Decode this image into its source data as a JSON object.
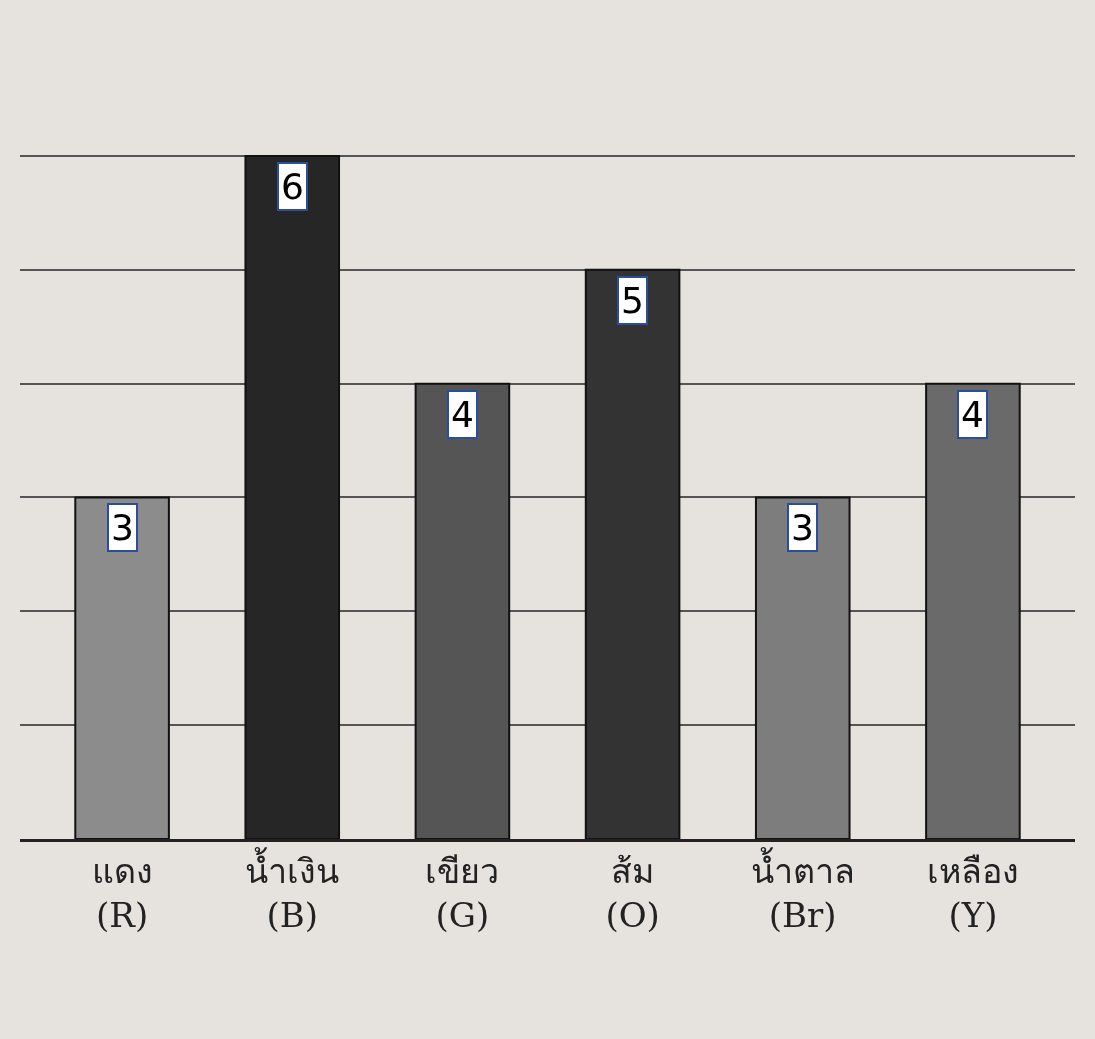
{
  "chart_data": {
    "type": "bar",
    "categories": [
      "แดง\n(R)",
      "น้ำเงิน\n(B)",
      "เขียว\n(G)",
      "ส้ม\n(O)",
      "น้ำตาล\n(Br)",
      "เหลือง\n(Y)"
    ],
    "values": [
      3,
      6,
      4,
      5,
      3,
      4
    ],
    "colors": [
      "#8c8c8c",
      "#262626",
      "#555555",
      "#333333",
      "#7d7d7d",
      "#6a6a6a"
    ],
    "grid": "y",
    "tick_labels": "x",
    "data_labels": true
  }
}
